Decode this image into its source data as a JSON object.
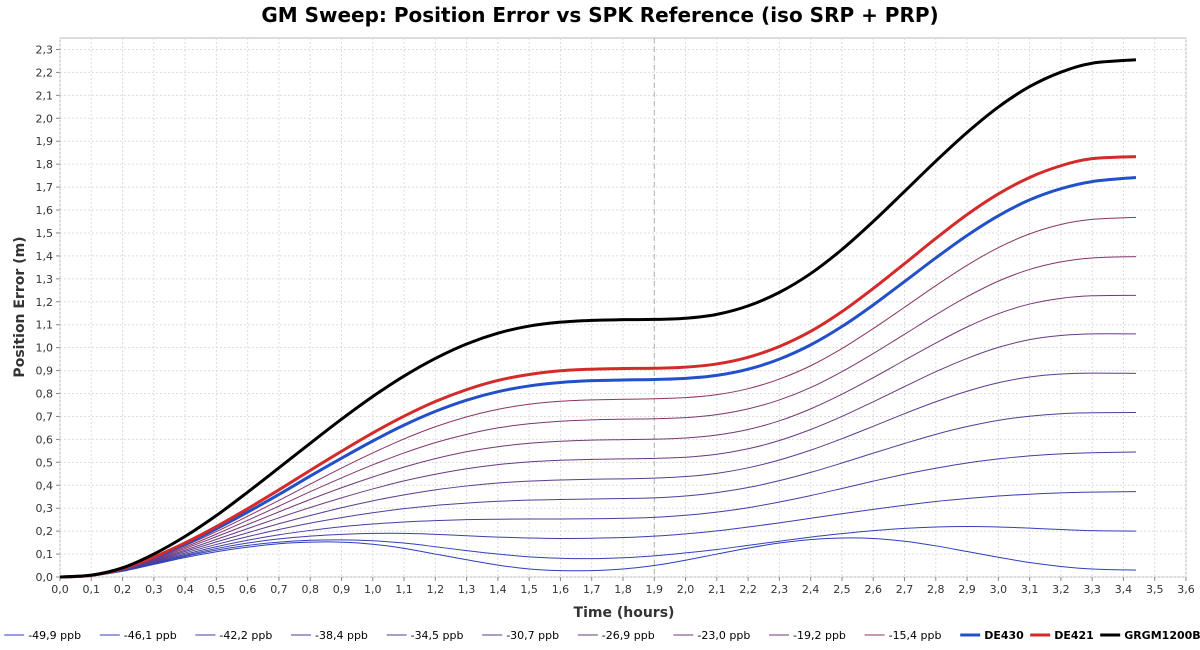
{
  "chart_data": {
    "type": "line",
    "title": "GM Sweep: Position Error vs SPK Reference (iso SRP + PRP)",
    "xlabel": "Time (hours)",
    "ylabel": "Position Error (m)",
    "xlim": [
      0,
      3.6
    ],
    "ylim": [
      0,
      2.35
    ],
    "x_ticks": [
      "0,0",
      "0,1",
      "0,2",
      "0,3",
      "0,4",
      "0,5",
      "0,6",
      "0,7",
      "0,8",
      "0,9",
      "1,0",
      "1,1",
      "1,2",
      "1,3",
      "1,4",
      "1,5",
      "1,6",
      "1,7",
      "1,8",
      "1,9",
      "2,0",
      "2,1",
      "2,2",
      "2,3",
      "2,4",
      "2,5",
      "2,6",
      "2,7",
      "2,8",
      "2,9",
      "3,0",
      "3,1",
      "3,2",
      "3,3",
      "3,4",
      "3,5",
      "3,6"
    ],
    "y_ticks": [
      "0,0",
      "0,1",
      "0,2",
      "0,3",
      "0,4",
      "0,5",
      "0,6",
      "0,7",
      "0,8",
      "0,9",
      "1,0",
      "1,1",
      "1,2",
      "1,3",
      "1,4",
      "1,5",
      "1,6",
      "1,7",
      "1,8",
      "1,9",
      "2,0",
      "2,1",
      "2,2",
      "2,3"
    ],
    "grid": true,
    "vertical_marker_x": 1.9,
    "legend_position": "bottom",
    "x": [
      0.0,
      0.1,
      0.2,
      0.3,
      0.4,
      0.5,
      0.6,
      0.7,
      0.8,
      0.9,
      1.0,
      1.1,
      1.2,
      1.3,
      1.4,
      1.5,
      1.6,
      1.7,
      1.8,
      1.9,
      2.0,
      2.1,
      2.2,
      2.3,
      2.4,
      2.5,
      2.6,
      2.7,
      2.8,
      2.9,
      3.0,
      3.1,
      3.2,
      3.3,
      3.44
    ],
    "series": [
      {
        "name": "-49,9 ppb",
        "color": "#2b3fbf",
        "width": 1,
        "values": [
          0.0,
          0.005,
          0.025,
          0.055,
          0.085,
          0.11,
          0.13,
          0.145,
          0.152,
          0.152,
          0.143,
          0.125,
          0.1,
          0.075,
          0.052,
          0.035,
          0.028,
          0.028,
          0.035,
          0.05,
          0.073,
          0.1,
          0.126,
          0.148,
          0.163,
          0.17,
          0.168,
          0.156,
          0.136,
          0.111,
          0.086,
          0.063,
          0.046,
          0.035,
          0.03
        ]
      },
      {
        "name": "-46,1 ppb",
        "color": "#3340b8",
        "width": 1,
        "values": [
          0.0,
          0.005,
          0.026,
          0.058,
          0.09,
          0.117,
          0.138,
          0.152,
          0.16,
          0.162,
          0.158,
          0.148,
          0.132,
          0.115,
          0.1,
          0.088,
          0.082,
          0.08,
          0.084,
          0.092,
          0.105,
          0.12,
          0.138,
          0.156,
          0.174,
          0.189,
          0.202,
          0.212,
          0.218,
          0.22,
          0.218,
          0.213,
          0.207,
          0.202,
          0.2
        ]
      },
      {
        "name": "-42,2 ppb",
        "color": "#3b3fae",
        "width": 1,
        "values": [
          0.0,
          0.005,
          0.027,
          0.06,
          0.094,
          0.124,
          0.148,
          0.166,
          0.178,
          0.186,
          0.19,
          0.19,
          0.186,
          0.18,
          0.174,
          0.17,
          0.168,
          0.169,
          0.172,
          0.178,
          0.188,
          0.201,
          0.218,
          0.236,
          0.256,
          0.276,
          0.295,
          0.313,
          0.329,
          0.342,
          0.353,
          0.361,
          0.367,
          0.37,
          0.372
        ]
      },
      {
        "name": "-38,4 ppb",
        "color": "#453ea3",
        "width": 1,
        "values": [
          0.0,
          0.006,
          0.028,
          0.063,
          0.099,
          0.132,
          0.16,
          0.184,
          0.203,
          0.219,
          0.231,
          0.24,
          0.246,
          0.25,
          0.252,
          0.253,
          0.253,
          0.254,
          0.256,
          0.26,
          0.269,
          0.283,
          0.302,
          0.327,
          0.355,
          0.386,
          0.418,
          0.448,
          0.474,
          0.497,
          0.515,
          0.528,
          0.537,
          0.542,
          0.545
        ]
      },
      {
        "name": "-34,5 ppb",
        "color": "#503d98",
        "width": 1,
        "values": [
          0.0,
          0.006,
          0.029,
          0.066,
          0.105,
          0.142,
          0.176,
          0.207,
          0.235,
          0.259,
          0.28,
          0.298,
          0.312,
          0.322,
          0.33,
          0.335,
          0.338,
          0.34,
          0.342,
          0.345,
          0.353,
          0.368,
          0.39,
          0.42,
          0.456,
          0.497,
          0.54,
          0.582,
          0.622,
          0.656,
          0.683,
          0.701,
          0.712,
          0.716,
          0.717
        ]
      },
      {
        "name": "-30,7 ppb",
        "color": "#5b3b8d",
        "width": 1,
        "values": [
          0.0,
          0.006,
          0.03,
          0.069,
          0.111,
          0.153,
          0.193,
          0.232,
          0.268,
          0.302,
          0.332,
          0.358,
          0.38,
          0.397,
          0.41,
          0.418,
          0.423,
          0.426,
          0.428,
          0.431,
          0.438,
          0.452,
          0.476,
          0.51,
          0.553,
          0.603,
          0.657,
          0.712,
          0.764,
          0.81,
          0.847,
          0.872,
          0.885,
          0.889,
          0.888
        ]
      },
      {
        "name": "-26,9 ppb",
        "color": "#673a82",
        "width": 1,
        "values": [
          0.0,
          0.006,
          0.031,
          0.072,
          0.117,
          0.164,
          0.211,
          0.258,
          0.303,
          0.345,
          0.384,
          0.419,
          0.448,
          0.472,
          0.49,
          0.502,
          0.509,
          0.513,
          0.515,
          0.517,
          0.522,
          0.535,
          0.559,
          0.595,
          0.643,
          0.7,
          0.764,
          0.83,
          0.895,
          0.953,
          1.001,
          1.035,
          1.053,
          1.06,
          1.06
        ]
      },
      {
        "name": "-23,0 ppb",
        "color": "#733877",
        "width": 1,
        "values": [
          0.0,
          0.007,
          0.032,
          0.075,
          0.124,
          0.176,
          0.229,
          0.284,
          0.338,
          0.389,
          0.436,
          0.479,
          0.516,
          0.546,
          0.568,
          0.583,
          0.592,
          0.597,
          0.599,
          0.601,
          0.606,
          0.619,
          0.643,
          0.681,
          0.733,
          0.797,
          0.869,
          0.945,
          1.02,
          1.09,
          1.148,
          1.19,
          1.215,
          1.226,
          1.228
        ]
      },
      {
        "name": "-19,2 ppb",
        "color": "#7f366c",
        "width": 1,
        "values": [
          0.0,
          0.007,
          0.033,
          0.078,
          0.13,
          0.187,
          0.247,
          0.309,
          0.372,
          0.432,
          0.489,
          0.541,
          0.586,
          0.622,
          0.65,
          0.668,
          0.679,
          0.685,
          0.688,
          0.69,
          0.695,
          0.708,
          0.733,
          0.772,
          0.826,
          0.895,
          0.974,
          1.058,
          1.143,
          1.222,
          1.29,
          1.341,
          1.374,
          1.391,
          1.397
        ]
      },
      {
        "name": "-15,4 ppb",
        "color": "#8b3561",
        "width": 1,
        "values": [
          0.0,
          0.007,
          0.034,
          0.081,
          0.136,
          0.198,
          0.265,
          0.334,
          0.405,
          0.475,
          0.541,
          0.602,
          0.655,
          0.698,
          0.731,
          0.753,
          0.766,
          0.772,
          0.775,
          0.777,
          0.782,
          0.795,
          0.821,
          0.863,
          0.921,
          0.996,
          1.083,
          1.176,
          1.27,
          1.359,
          1.436,
          1.496,
          1.537,
          1.559,
          1.568
        ]
      },
      {
        "name": "DE430",
        "color": "#2150c8",
        "width": 3,
        "values": [
          0.0,
          0.007,
          0.035,
          0.084,
          0.143,
          0.21,
          0.283,
          0.36,
          0.44,
          0.518,
          0.593,
          0.662,
          0.722,
          0.771,
          0.808,
          0.833,
          0.848,
          0.856,
          0.859,
          0.861,
          0.866,
          0.879,
          0.906,
          0.95,
          1.012,
          1.092,
          1.186,
          1.288,
          1.391,
          1.489,
          1.575,
          1.644,
          1.693,
          1.724,
          1.742
        ]
      },
      {
        "name": "DE421",
        "color": "#d42a2a",
        "width": 3,
        "values": [
          0.0,
          0.007,
          0.036,
          0.087,
          0.149,
          0.22,
          0.298,
          0.38,
          0.465,
          0.548,
          0.628,
          0.701,
          0.765,
          0.817,
          0.857,
          0.883,
          0.899,
          0.906,
          0.909,
          0.91,
          0.915,
          0.929,
          0.958,
          1.005,
          1.071,
          1.157,
          1.258,
          1.366,
          1.476,
          1.58,
          1.67,
          1.742,
          1.793,
          1.824,
          1.833
        ]
      },
      {
        "name": "GRGM1200B",
        "color": "#000000",
        "width": 3,
        "values": [
          0.0,
          0.008,
          0.04,
          0.1,
          0.177,
          0.268,
          0.37,
          0.476,
          0.583,
          0.688,
          0.787,
          0.876,
          0.953,
          1.016,
          1.063,
          1.094,
          1.111,
          1.119,
          1.122,
          1.123,
          1.128,
          1.145,
          1.182,
          1.241,
          1.323,
          1.428,
          1.55,
          1.681,
          1.813,
          1.938,
          2.049,
          2.138,
          2.201,
          2.24,
          2.255
        ]
      }
    ]
  }
}
